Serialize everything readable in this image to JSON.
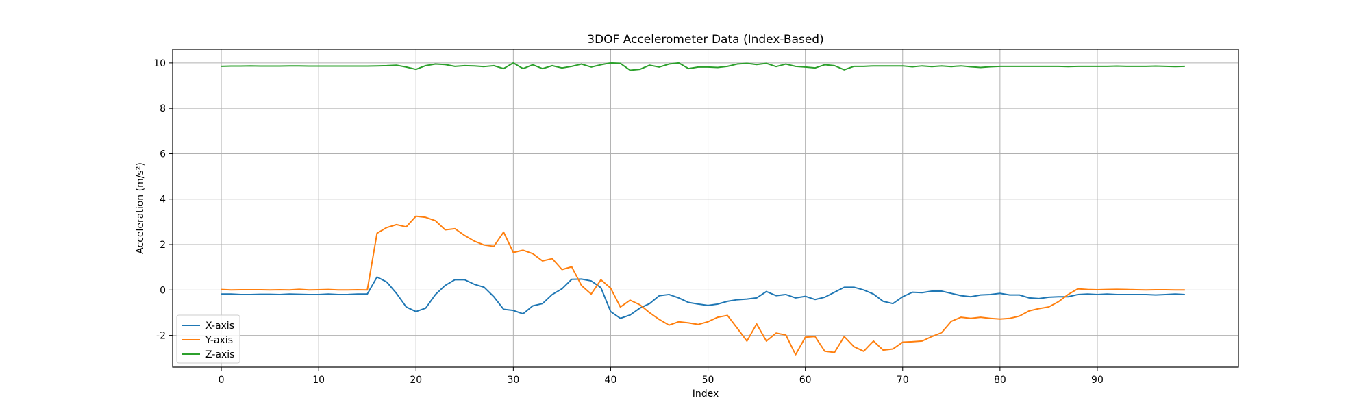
{
  "chart_data": {
    "type": "line",
    "title": "3DOF Accelerometer Data (Index-Based)",
    "xlabel": "Index",
    "ylabel": "Acceleration (m/s²)",
    "xlim": [
      -5,
      104.5
    ],
    "ylim": [
      -3.4,
      10.6
    ],
    "xticks": [
      0,
      10,
      20,
      30,
      40,
      50,
      60,
      70,
      80,
      90
    ],
    "yticks": [
      -2,
      0,
      2,
      4,
      6,
      8,
      10
    ],
    "grid": true,
    "legend_position": "lower-left",
    "x": [
      0,
      1,
      2,
      3,
      4,
      5,
      6,
      7,
      8,
      9,
      10,
      11,
      12,
      13,
      14,
      15,
      16,
      17,
      18,
      19,
      20,
      21,
      22,
      23,
      24,
      25,
      26,
      27,
      28,
      29,
      30,
      31,
      32,
      33,
      34,
      35,
      36,
      37,
      38,
      39,
      40,
      41,
      42,
      43,
      44,
      45,
      46,
      47,
      48,
      49,
      50,
      51,
      52,
      53,
      54,
      55,
      56,
      57,
      58,
      59,
      60,
      61,
      62,
      63,
      64,
      65,
      66,
      67,
      68,
      69,
      70,
      71,
      72,
      73,
      74,
      75,
      76,
      77,
      78,
      79,
      80,
      81,
      82,
      83,
      84,
      85,
      86,
      87,
      88,
      89,
      90,
      91,
      92,
      93,
      94,
      95,
      96,
      97,
      98,
      99
    ],
    "series": [
      {
        "name": "X-axis",
        "color": "#1f77b4",
        "values": [
          -0.18,
          -0.18,
          -0.2,
          -0.2,
          -0.19,
          -0.19,
          -0.2,
          -0.18,
          -0.19,
          -0.2,
          -0.2,
          -0.18,
          -0.2,
          -0.2,
          -0.18,
          -0.18,
          0.57,
          0.35,
          -0.15,
          -0.75,
          -0.95,
          -0.8,
          -0.2,
          0.2,
          0.45,
          0.45,
          0.25,
          0.12,
          -0.3,
          -0.85,
          -0.9,
          -1.05,
          -0.7,
          -0.6,
          -0.2,
          0.05,
          0.47,
          0.48,
          0.4,
          0.1,
          -0.95,
          -1.25,
          -1.1,
          -0.8,
          -0.6,
          -0.25,
          -0.2,
          -0.35,
          -0.55,
          -0.62,
          -0.68,
          -0.62,
          -0.5,
          -0.43,
          -0.4,
          -0.35,
          -0.07,
          -0.25,
          -0.2,
          -0.35,
          -0.28,
          -0.42,
          -0.32,
          -0.1,
          0.12,
          0.12,
          0.0,
          -0.18,
          -0.5,
          -0.6,
          -0.3,
          -0.1,
          -0.12,
          -0.05,
          -0.05,
          -0.15,
          -0.25,
          -0.3,
          -0.22,
          -0.2,
          -0.15,
          -0.22,
          -0.22,
          -0.35,
          -0.38,
          -0.32,
          -0.3,
          -0.3,
          -0.2,
          -0.18,
          -0.2,
          -0.18,
          -0.2,
          -0.2,
          -0.2,
          -0.2,
          -0.22,
          -0.2,
          -0.18,
          -0.2
        ]
      },
      {
        "name": "Y-axis",
        "color": "#ff7f0e",
        "values": [
          0.02,
          0.0,
          0.01,
          0.01,
          0.01,
          0.0,
          0.01,
          0.0,
          0.03,
          0.0,
          0.01,
          0.02,
          0.0,
          0.0,
          0.01,
          0.0,
          2.5,
          2.75,
          2.88,
          2.78,
          3.25,
          3.2,
          3.05,
          2.65,
          2.7,
          2.4,
          2.15,
          1.98,
          1.92,
          2.55,
          1.65,
          1.75,
          1.6,
          1.28,
          1.38,
          0.9,
          1.02,
          0.2,
          -0.18,
          0.45,
          0.08,
          -0.75,
          -0.45,
          -0.65,
          -1.0,
          -1.3,
          -1.55,
          -1.4,
          -1.45,
          -1.52,
          -1.4,
          -1.2,
          -1.12,
          -1.68,
          -2.25,
          -1.5,
          -2.25,
          -1.9,
          -1.98,
          -2.85,
          -2.08,
          -2.05,
          -2.7,
          -2.75,
          -2.05,
          -2.5,
          -2.7,
          -2.25,
          -2.65,
          -2.6,
          -2.3,
          -2.28,
          -2.25,
          -2.05,
          -1.88,
          -1.38,
          -1.2,
          -1.25,
          -1.2,
          -1.25,
          -1.28,
          -1.25,
          -1.15,
          -0.92,
          -0.82,
          -0.75,
          -0.52,
          -0.2,
          0.05,
          0.02,
          0.01,
          0.02,
          0.03,
          0.02,
          0.01,
          0.0,
          0.01,
          0.01,
          0.0,
          0.0
        ]
      },
      {
        "name": "Z-axis",
        "color": "#2ca02c",
        "values": [
          9.85,
          9.86,
          9.86,
          9.87,
          9.86,
          9.86,
          9.86,
          9.87,
          9.87,
          9.86,
          9.86,
          9.86,
          9.86,
          9.86,
          9.86,
          9.86,
          9.87,
          9.88,
          9.9,
          9.82,
          9.72,
          9.88,
          9.95,
          9.93,
          9.85,
          9.88,
          9.87,
          9.84,
          9.88,
          9.75,
          10.0,
          9.75,
          9.92,
          9.75,
          9.88,
          9.78,
          9.85,
          9.95,
          9.82,
          9.92,
          10.0,
          9.98,
          9.68,
          9.72,
          9.9,
          9.82,
          9.95,
          10.0,
          9.75,
          9.82,
          9.82,
          9.8,
          9.85,
          9.95,
          9.98,
          9.93,
          9.98,
          9.84,
          9.95,
          9.85,
          9.82,
          9.78,
          9.92,
          9.88,
          9.7,
          9.85,
          9.85,
          9.87,
          9.87,
          9.87,
          9.87,
          9.83,
          9.87,
          9.84,
          9.87,
          9.84,
          9.87,
          9.83,
          9.8,
          9.83,
          9.85,
          9.85,
          9.85,
          9.85,
          9.85,
          9.85,
          9.85,
          9.84,
          9.85,
          9.85,
          9.85,
          9.85,
          9.86,
          9.85,
          9.85,
          9.85,
          9.86,
          9.85,
          9.84,
          9.85
        ]
      }
    ]
  }
}
